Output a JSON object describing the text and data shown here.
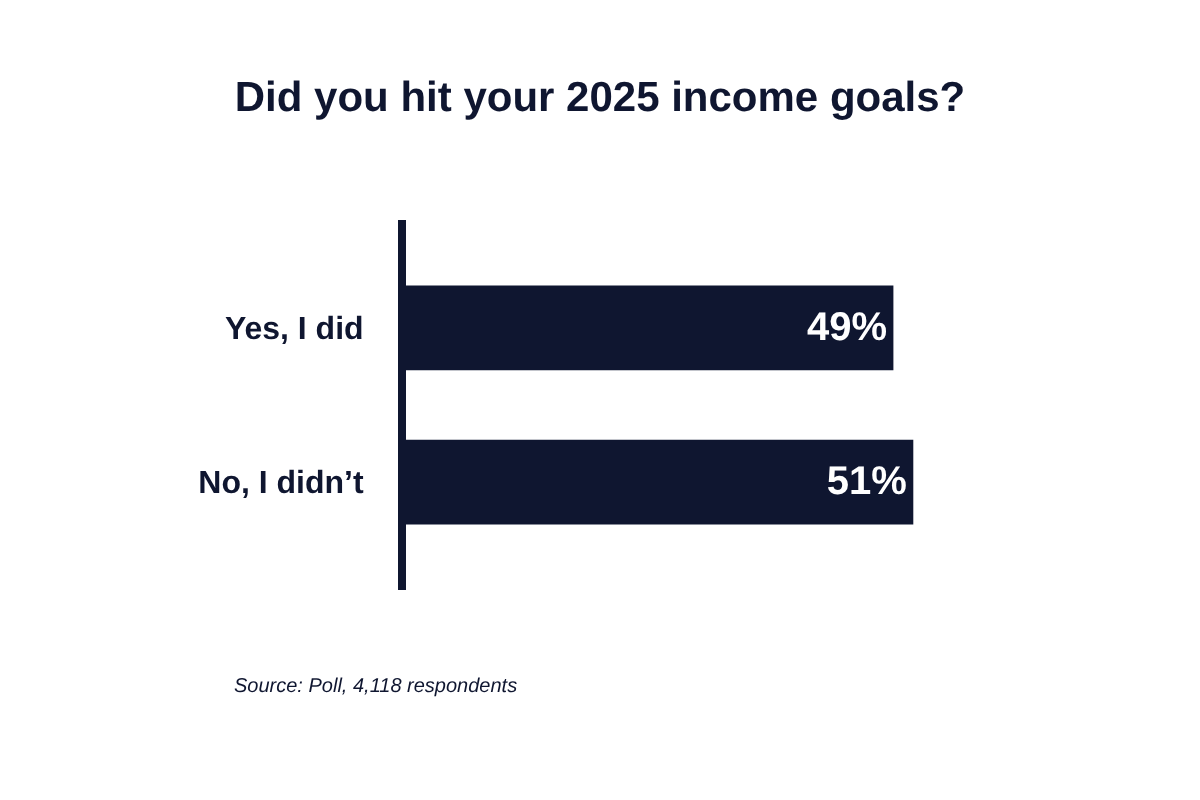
{
  "chart_data": {
    "type": "bar",
    "orientation": "horizontal",
    "title": "Did you hit your 2025 income goals?",
    "categories": [
      "Yes, I did",
      "No, I didn’t"
    ],
    "values": [
      49,
      51
    ],
    "value_labels": [
      "49%",
      "51%"
    ],
    "color": "#0f1630",
    "annotations": [
      "Source: Poll, 4,118 respondents"
    ]
  }
}
